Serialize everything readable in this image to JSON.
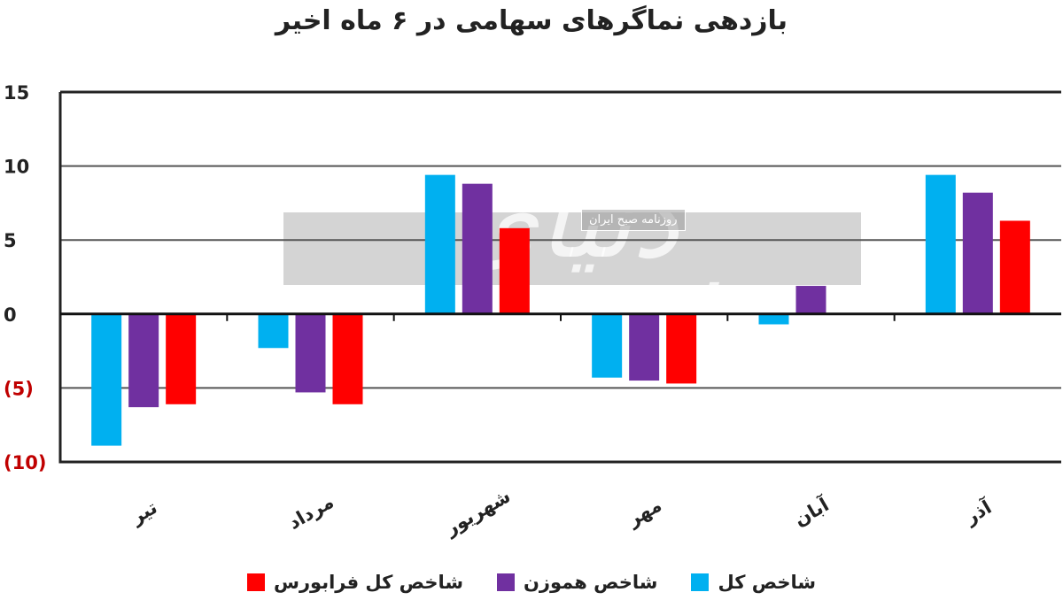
{
  "chart_data": {
    "type": "bar",
    "title": "بازدهی نماگرهای سهامی در ۶ ماه اخیر",
    "categories": [
      "تیر",
      "مرداد",
      "شهریور",
      "مهر",
      "آبان",
      "آذر"
    ],
    "series": [
      {
        "name": "شاخص کل",
        "color": "#00b0f0",
        "values": [
          -8.9,
          -2.3,
          9.4,
          -4.3,
          -0.7,
          9.4
        ]
      },
      {
        "name": "شاخص هموزن",
        "color": "#7030a0",
        "values": [
          -6.3,
          -5.3,
          8.8,
          -4.5,
          1.9,
          8.2
        ]
      },
      {
        "name": "شاخص کل فرابورس",
        "color": "#ff0000",
        "values": [
          -6.1,
          -6.1,
          5.8,
          -4.7,
          0,
          6.3
        ]
      }
    ],
    "ylim": [
      -10,
      15
    ],
    "yticks": [
      15,
      10,
      5,
      0,
      -5,
      -10
    ],
    "ytick_labels": [
      "15",
      "10",
      "5",
      "0",
      "(5)",
      "(10)"
    ],
    "ytick_colors": [
      "#222222",
      "#222222",
      "#222222",
      "#222222",
      "#c00000",
      "#c00000"
    ],
    "grid": true,
    "legend_position": "bottom"
  },
  "watermark": {
    "logo": "دنیای اقتصاد",
    "tagline": "روزنامه صبح ایران"
  }
}
